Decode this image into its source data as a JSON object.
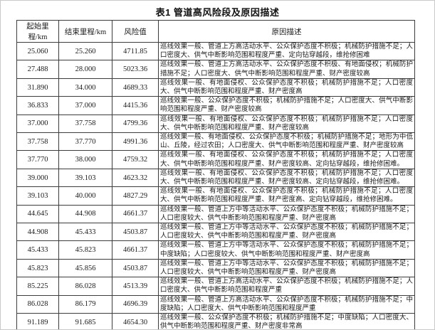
{
  "page": {
    "title": "表1  管道高风险段及原因描述"
  },
  "table": {
    "columns": [
      "起始里程/km",
      "结束里程/km",
      "风险值",
      "原因描述"
    ],
    "rows": [
      {
        "start": "25.060",
        "end": "25.260",
        "risk": "4711.85",
        "desc": "巡线效果一般、管道上方高活动水平、公众保护态度不积极；机械防护措施不足；人口密度大、供气中断影响范围和程度严重、定向钻穿越段，维抢修困难"
      },
      {
        "start": "27.488",
        "end": "28.000",
        "risk": "5023.36",
        "desc": "巡线效果一般、管道上方高活动水平、公众保护态度不积极、有地面侵权；机械防护措施不足；人口密度大、供气中断影响范围和程度严重、财产密度较高"
      },
      {
        "start": "31.890",
        "end": "34.000",
        "risk": "4689.33",
        "desc": "巡线效果一般、有地面侵权、公众保护态度不积极；机械防护措施不足；人口密度大、供气中断影响范围和程度严重、财产密度高"
      },
      {
        "start": "36.833",
        "end": "37.000",
        "risk": "4415.36",
        "desc": "巡线效果一般、公众保护态度不积极；机械防护措施不足；人口密度大、供气中断影响范围和程度严重、财产密度较高"
      },
      {
        "start": "37.000",
        "end": "37.758",
        "risk": "4799.36",
        "desc": "巡线效果一般、有地面侵权、公众保护态度不积极；机械防护措施不足；人口密度大、供气中断影响范围和程度严重、财产密度较高"
      },
      {
        "start": "37.758",
        "end": "37.770",
        "risk": "4991.36",
        "desc": "巡线效果一般、有地面侵权、公众保护态度不积极；机械防护措施不足；地形为中低山、丘陵，经过农田；人口密度大、供气中断影响范围和程度严重、财产密度较高"
      },
      {
        "start": "37.770",
        "end": "38.000",
        "risk": "4759.32",
        "desc": "巡线效果一般、有地面侵权、公众保护态度不积极；机械防护措施不足；人口密度大、供气中断影响范围和程度严重、财产密度较高、定向钻穿越段，维抢修困难。"
      },
      {
        "start": "39.000",
        "end": "39.103",
        "risk": "4623.32",
        "desc": "巡线效果一般、有地面侵权、公众保护态度不积极；机械防护措施不足；人口密度大、供气中断影响范围和程度严重、财产密度较高、定向钻穿越段，维抢修困难。"
      },
      {
        "start": "39.103",
        "end": "40.000",
        "risk": "4827.29",
        "desc": "巡线效果一般、有地面侵权、公众保护态度不积极；机械防护措施不足；人口密度大、供气中断影响范围和程度严重、财产密度高、定向钻穿越段，维抢修困难。"
      },
      {
        "start": "44.645",
        "end": "44.908",
        "risk": "4661.37",
        "desc": "巡线效果一般、管道上方中等活动水平、公众保护态度不积极；机械防护措施不足；人口密度较大、供气中断影响范围和程度严重、财产密度高"
      },
      {
        "start": "44.908",
        "end": "45.433",
        "risk": "4503.87",
        "desc": "巡线效果一般、管道上方中等活动水平、公众保护态度不积极；机械防护措施不足；人口密度较大、供气中断影响范围和程度严重、财产密度高"
      },
      {
        "start": "45.433",
        "end": "45.823",
        "risk": "4661.37",
        "desc": "巡线效果一般、管道上方中等活动水平、公众保护态度不积极；机械防护措施不足；中度缺陷；人口密度较大、供气中断影响范围和程度严重、财产密度高"
      },
      {
        "start": "45.823",
        "end": "45.856",
        "risk": "4503.87",
        "desc": "巡线效果一般、管道上方中等活动水平、公众保护态度不积极；机械防护措施不足；人口密度较大、供气中断影响范围和程度严重、财产密度高"
      },
      {
        "start": "85.225",
        "end": "86.028",
        "risk": "4513.39",
        "desc": "巡线效果一般、管道上方高活动水平、公众保护态度不积极；机械防护措施不足；人口密度大、供气中断影响范围和程度严重"
      },
      {
        "start": "86.028",
        "end": "86.179",
        "risk": "4696.39",
        "desc": "巡线效果一般、管道上方高活动水平、公众保护态度不积极；机械防护措施不足；中度缺陷；人口密度大、供气中断影响范围和程度严重"
      },
      {
        "start": "91.189",
        "end": "91.685",
        "risk": "4654.30",
        "desc": "巡线效果一般、公众保护态度不积极；机械防护措施不足；中度缺陷；人口密度大、供气中断影响范围和程度严重、财产密度非常高"
      }
    ]
  }
}
